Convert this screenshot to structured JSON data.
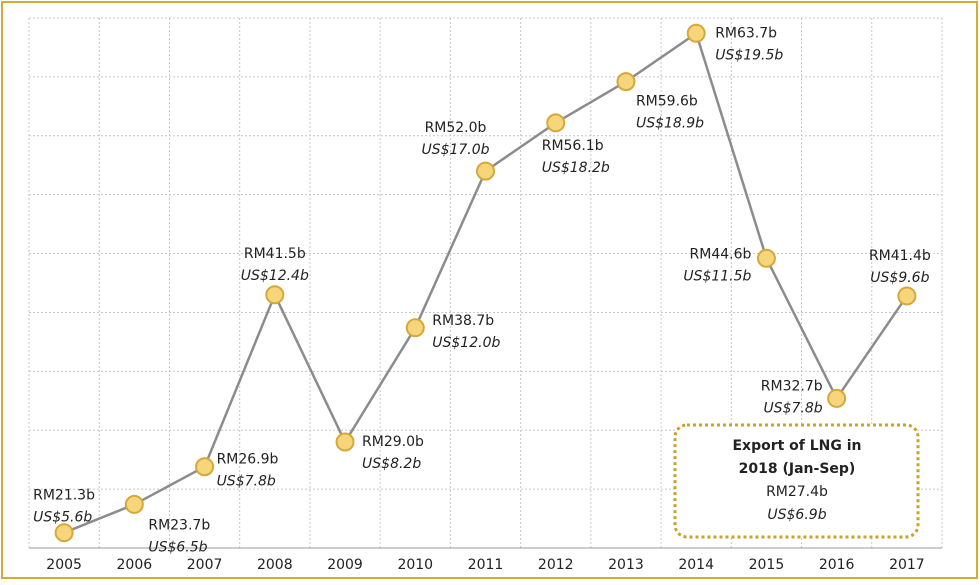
{
  "chart_data": {
    "type": "line",
    "categories": [
      "2005",
      "2006",
      "2007",
      "2008",
      "2009",
      "2010",
      "2011",
      "2012",
      "2013",
      "2014",
      "2015",
      "2016",
      "2017"
    ],
    "values": [
      21.3,
      23.7,
      26.9,
      41.5,
      29.0,
      38.7,
      52.0,
      56.1,
      59.6,
      63.7,
      44.6,
      32.7,
      41.4
    ],
    "value_labels": [
      "RM21.3b",
      "RM23.7b",
      "RM26.9b",
      "RM41.5b",
      "RM29.0b",
      "RM38.7b",
      "RM52.0b",
      "RM56.1b",
      "RM59.6b",
      "RM63.7b",
      "RM44.6b",
      "RM32.7b",
      "RM41.4b"
    ],
    "usd_labels": [
      "US$5.6b",
      "US$6.5b",
      "US$7.8b",
      "US$12.4b",
      "US$8.2b",
      "US$12.0b",
      "US$17.0b",
      "US$18.2b",
      "US$18.9b",
      "US$19.5b",
      "US$11.5b",
      "US$7.8b",
      "US$9.6b"
    ],
    "color": "#8c8c8c",
    "marker_color": "#f7d57a",
    "ylim": [
      20,
      65
    ],
    "yticks": [
      20,
      25,
      30,
      35,
      40,
      45,
      50,
      55,
      60,
      65
    ],
    "grid": true,
    "annotation": {
      "title_lines": [
        "Export of LNG in",
        "2018 (Jan-Sep)"
      ],
      "value_label": "RM27.4b",
      "usd_label": "US$6.9b"
    }
  }
}
